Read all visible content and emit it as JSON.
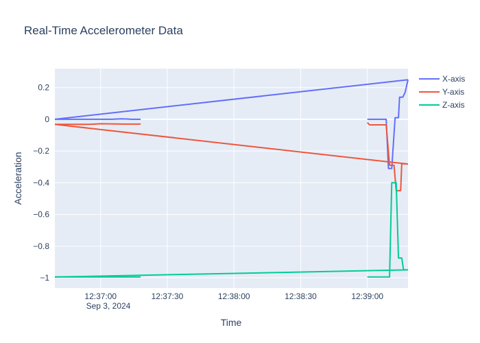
{
  "chart_data": {
    "type": "line",
    "title": "Real-Time Accelerometer Data",
    "xlabel": "Time",
    "ylabel": "Acceleration",
    "x_ticks": [
      "12:37:00",
      "12:37:30",
      "12:38:00",
      "12:38:30",
      "12:39:00"
    ],
    "x_tick_seconds": [
      0,
      30,
      60,
      90,
      120
    ],
    "x_date_label": "Sep 3, 2024",
    "xlim_seconds": [
      -20.6,
      138.3
    ],
    "ylim": [
      -1.065,
      0.32
    ],
    "y_ticks": [
      0.2,
      0,
      -0.2,
      -0.4,
      -0.6,
      -0.8,
      -1
    ],
    "y_tick_labels": [
      "0.2",
      "0",
      "−0.2",
      "−0.4",
      "−0.6",
      "−0.8",
      "−1"
    ],
    "grid": true,
    "legend_position": "top-right",
    "series": [
      {
        "name": "X-axis",
        "color": "#636efa",
        "points": [
          [
            -20.6,
            0
          ],
          [
            -16,
            0
          ],
          [
            -10,
            0
          ],
          [
            -5,
            0
          ],
          [
            0,
            0
          ],
          [
            5,
            0
          ],
          [
            9,
            0.003
          ],
          [
            12,
            0.002
          ],
          [
            14,
            0
          ],
          [
            18,
            0
          ],
          [
            -20.6,
            0
          ],
          [
            138.3,
            0.25
          ],
          [
            120,
            0
          ],
          [
            124,
            0
          ],
          [
            128.5,
            0
          ],
          [
            129.5,
            -0.31
          ],
          [
            131,
            -0.31
          ],
          [
            132.5,
            0.01
          ],
          [
            134,
            0.01
          ],
          [
            134.5,
            0.14
          ],
          [
            136,
            0.14
          ],
          [
            137,
            0.17
          ],
          [
            138.3,
            0.25
          ]
        ],
        "segments": [
          [
            0,
            9
          ],
          [
            10,
            11
          ],
          [
            12,
            22
          ]
        ]
      },
      {
        "name": "Y-axis",
        "color": "#ef553b",
        "points": [
          [
            -20.6,
            -0.032
          ],
          [
            -5,
            -0.032
          ],
          [
            0,
            -0.028
          ],
          [
            10,
            -0.03
          ],
          [
            18,
            -0.03
          ],
          [
            -20.6,
            -0.032
          ],
          [
            138.3,
            -0.282
          ],
          [
            120,
            -0.02
          ],
          [
            121,
            -0.035
          ],
          [
            128.5,
            -0.035
          ],
          [
            130,
            -0.29
          ],
          [
            132,
            -0.29
          ],
          [
            133,
            -0.45
          ],
          [
            135,
            -0.45
          ],
          [
            135.5,
            -0.28
          ],
          [
            138.3,
            -0.282
          ]
        ],
        "segments": [
          [
            0,
            4
          ],
          [
            5,
            6
          ],
          [
            7,
            15
          ]
        ]
      },
      {
        "name": "Z-axis",
        "color": "#00cc96",
        "points": [
          [
            -20.6,
            -0.995
          ],
          [
            5,
            -0.995
          ],
          [
            18,
            -0.995
          ],
          [
            -20.6,
            -0.995
          ],
          [
            138.3,
            -0.95
          ],
          [
            120,
            -0.995
          ],
          [
            130,
            -0.995
          ],
          [
            131,
            -0.4
          ],
          [
            133,
            -0.4
          ],
          [
            134,
            -0.875
          ],
          [
            135.5,
            -0.875
          ],
          [
            136.3,
            -0.95
          ],
          [
            138.3,
            -0.95
          ]
        ],
        "segments": [
          [
            0,
            2
          ],
          [
            3,
            4
          ],
          [
            5,
            12
          ]
        ]
      }
    ]
  }
}
